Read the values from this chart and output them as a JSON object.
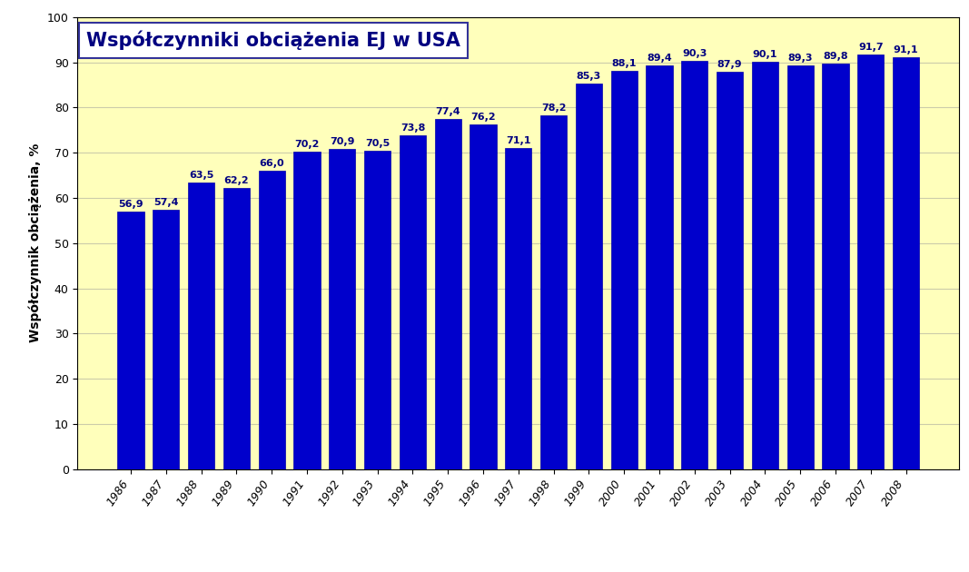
{
  "years": [
    1986,
    1987,
    1988,
    1989,
    1990,
    1991,
    1992,
    1993,
    1994,
    1995,
    1996,
    1997,
    1998,
    1999,
    2000,
    2001,
    2002,
    2003,
    2004,
    2005,
    2006,
    2007,
    2008
  ],
  "values": [
    56.9,
    57.4,
    63.5,
    62.2,
    66.0,
    70.2,
    70.9,
    70.5,
    73.8,
    77.4,
    76.2,
    71.1,
    78.2,
    85.3,
    88.1,
    89.4,
    90.3,
    87.9,
    90.1,
    89.3,
    89.8,
    91.7,
    91.1
  ],
  "bar_color": "#0000CC",
  "bar_edge_color": "#0000AA",
  "plot_bg_color": "#FFFFBB",
  "fig_bg_color": "#FFFFFF",
  "title": "Współczynniki obciążenia EJ w USA",
  "ylabel": "Współczynnik obciążenia, %",
  "ylim": [
    0,
    100
  ],
  "yticks": [
    0,
    10,
    20,
    30,
    40,
    50,
    60,
    70,
    80,
    90,
    100
  ],
  "title_fontsize": 15,
  "label_fontsize": 10,
  "tick_fontsize": 9,
  "value_fontsize": 8.0
}
